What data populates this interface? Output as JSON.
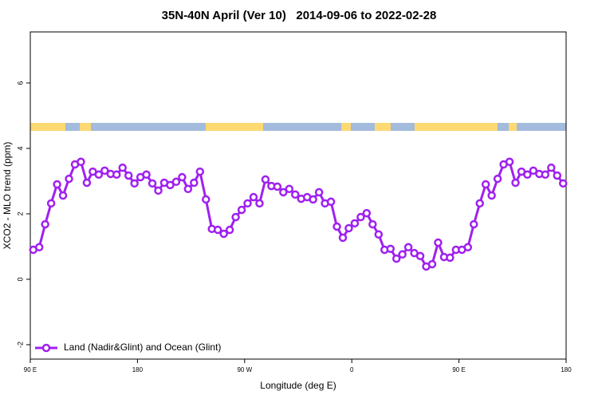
{
  "chart_data": {
    "type": "line",
    "title": "35N-40N April (Ver 10)   2014-09-06 to 2022-02-28",
    "x_label": "Longitude (deg E)",
    "y_label": "XCO2 - MLO trend (ppm)",
    "x": [
      92.5,
      97.5,
      102.5,
      107.5,
      112.5,
      117.5,
      122.5,
      127.5,
      132.5,
      137.5,
      142.5,
      147.5,
      152.5,
      157.5,
      162.5,
      167.5,
      172.5,
      177.5,
      182.5,
      187.5,
      192.5,
      197.5,
      202.5,
      207.5,
      212.5,
      217.5,
      222.5,
      227.5,
      232.5,
      237.5,
      242.5,
      247.5,
      252.5,
      257.5,
      262.5,
      267.5,
      272.5,
      277.5,
      282.5,
      287.5,
      292.5,
      297.5,
      302.5,
      307.5,
      312.5,
      317.5,
      322.5,
      327.5,
      332.5,
      337.5,
      342.5,
      347.5,
      352.5,
      357.5,
      362.5,
      367.5,
      372.5,
      377.5,
      382.5,
      387.5,
      392.5,
      397.5,
      402.5,
      407.5,
      412.5,
      417.5,
      422.5,
      427.5,
      432.5,
      437.5,
      442.5,
      447.5,
      452.5,
      457.5,
      462.5,
      467.5,
      472.5,
      477.5,
      482.5,
      487.5,
      492.5,
      497.5,
      502.5,
      507.5,
      512.5,
      517.5,
      522.5,
      527.5,
      532.5,
      537.5
    ],
    "series": [
      {
        "name": "Land (Nadir&Glint) and Ocean (Glint)",
        "color": "#a020f0",
        "values": [
          0.9,
          0.98,
          1.68,
          2.32,
          2.9,
          2.56,
          3.07,
          3.51,
          3.59,
          2.95,
          3.29,
          3.2,
          3.32,
          3.22,
          3.2,
          3.41,
          3.17,
          2.93,
          3.12,
          3.2,
          2.93,
          2.71,
          2.95,
          2.88,
          2.98,
          3.12,
          2.76,
          2.95,
          3.29,
          2.44,
          1.54,
          1.51,
          1.39,
          1.51,
          1.9,
          2.12,
          2.32,
          2.51,
          2.32,
          3.05,
          2.85,
          2.83,
          2.66,
          2.76,
          2.59,
          2.46,
          2.51,
          2.44,
          2.66,
          2.32,
          2.37,
          1.61,
          1.27,
          1.56,
          1.71,
          1.9,
          2.02,
          1.68,
          1.37,
          0.9,
          0.93,
          0.63,
          0.76,
          0.98,
          0.8,
          0.71,
          0.39,
          0.46,
          1.12,
          0.68,
          0.66,
          0.9,
          0.9,
          0.98,
          1.68,
          2.32,
          2.9,
          2.56,
          3.07,
          3.51,
          3.59,
          2.95,
          3.29,
          3.2,
          3.32,
          3.22,
          3.2,
          3.41,
          3.17,
          2.93
        ]
      }
    ],
    "xlim": [
      90,
      540
    ],
    "xticks": [
      {
        "value": 90,
        "label": "90 E"
      },
      180,
      {
        "value": 270,
        "label": "90 W"
      },
      {
        "value": 360,
        "label": "0"
      },
      {
        "value": 450,
        "label": "90 E"
      },
      {
        "value": 540,
        "label": "180"
      }
    ],
    "ylim": [
      -2.44,
      7.56
    ],
    "yticks": [
      -2,
      0,
      2,
      4,
      6
    ],
    "legend": "bottom-left"
  }
}
